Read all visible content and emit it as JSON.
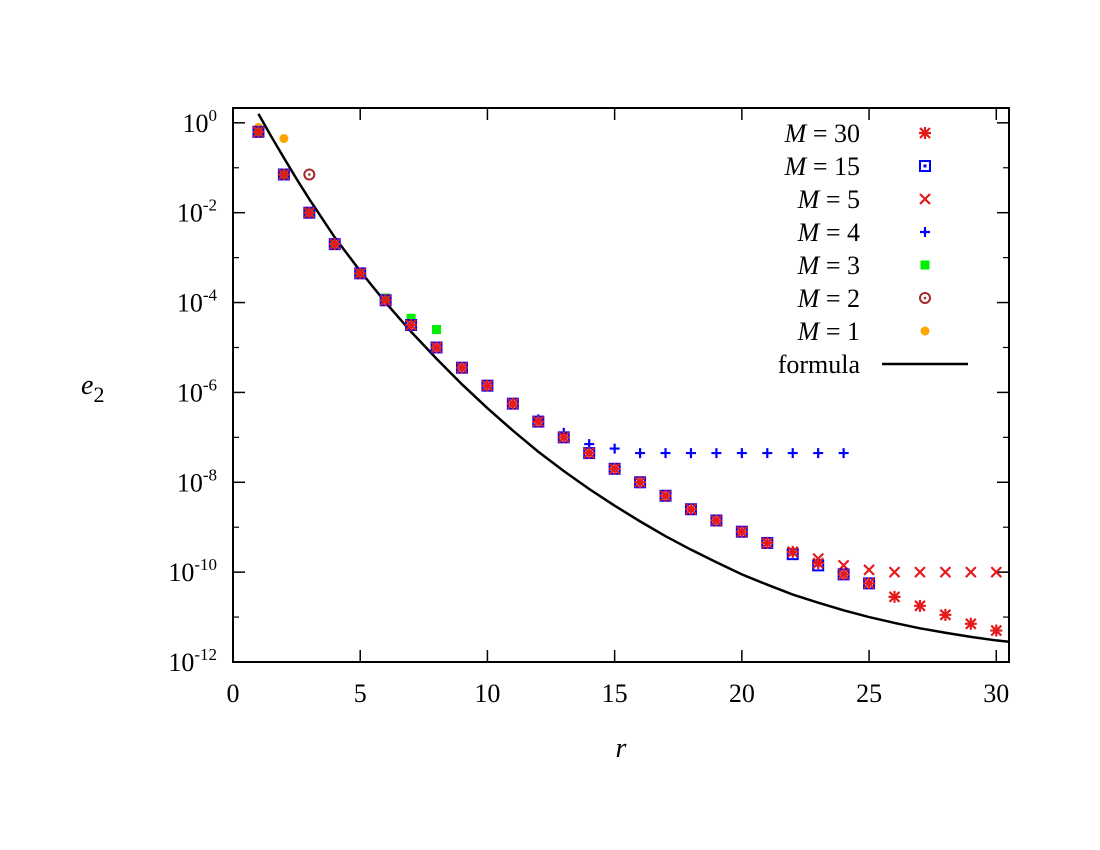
{
  "chart_data": {
    "type": "scatter",
    "title": "",
    "xlabel": "r",
    "ylabel": "e",
    "ylabel_sub": "2",
    "xlim": [
      0,
      30.5
    ],
    "ylim_exp": [
      -12,
      0.33
    ],
    "yscale": "log",
    "grid": false,
    "legend_position": "top-right",
    "x_ticks": [
      "0",
      "5",
      "10",
      "15",
      "20",
      "25",
      "30"
    ],
    "y_ticks": [
      {
        "base": "10",
        "exp": "0"
      },
      {
        "base": "10",
        "exp": "-2"
      },
      {
        "base": "10",
        "exp": "-4"
      },
      {
        "base": "10",
        "exp": "-6"
      },
      {
        "base": "10",
        "exp": "-8"
      },
      {
        "base": "10",
        "exp": "-10"
      },
      {
        "base": "10",
        "exp": "-12"
      }
    ],
    "series": [
      {
        "name": "M = 30",
        "marker": "star",
        "color": "#e41a1c",
        "x": [
          1,
          2,
          3,
          4,
          5,
          6,
          7,
          8,
          9,
          10,
          11,
          12,
          13,
          14,
          15,
          16,
          17,
          18,
          19,
          20,
          21,
          22,
          23,
          24,
          25,
          26,
          27,
          28,
          29,
          30
        ],
        "log10_y": [
          -0.2,
          -1.15,
          -2.0,
          -2.7,
          -3.35,
          -3.95,
          -4.5,
          -5.0,
          -5.45,
          -5.85,
          -6.25,
          -6.65,
          -7.0,
          -7.35,
          -7.7,
          -8.0,
          -8.3,
          -8.6,
          -8.85,
          -9.1,
          -9.35,
          -9.55,
          -9.8,
          -10.05,
          -10.25,
          -10.55,
          -10.75,
          -10.95,
          -11.15,
          -11.3
        ]
      },
      {
        "name": "M = 15",
        "marker": "open-square",
        "color": "#0000ff",
        "x": [
          1,
          2,
          3,
          4,
          5,
          6,
          7,
          8,
          9,
          10,
          11,
          12,
          13,
          14,
          15,
          16,
          17,
          18,
          19,
          20,
          21,
          22,
          23,
          24,
          25
        ],
        "log10_y": [
          -0.2,
          -1.15,
          -2.0,
          -2.7,
          -3.35,
          -3.95,
          -4.5,
          -5.0,
          -5.45,
          -5.85,
          -6.25,
          -6.65,
          -7.0,
          -7.35,
          -7.7,
          -8.0,
          -8.3,
          -8.6,
          -8.85,
          -9.1,
          -9.35,
          -9.6,
          -9.85,
          -10.05,
          -10.25
        ]
      },
      {
        "name": "M = 5",
        "marker": "x",
        "color": "#e41a1c",
        "x": [
          1,
          2,
          3,
          4,
          5,
          6,
          7,
          8,
          9,
          10,
          11,
          12,
          13,
          14,
          15,
          16,
          17,
          18,
          19,
          20,
          21,
          22,
          23,
          24,
          25,
          26,
          27,
          28,
          29,
          30
        ],
        "log10_y": [
          -0.2,
          -1.15,
          -2.0,
          -2.7,
          -3.35,
          -3.95,
          -4.5,
          -5.0,
          -5.45,
          -5.85,
          -6.25,
          -6.65,
          -7.0,
          -7.35,
          -7.7,
          -8.0,
          -8.3,
          -8.6,
          -8.85,
          -9.1,
          -9.35,
          -9.55,
          -9.7,
          -9.85,
          -9.95,
          -10.0,
          -10.0,
          -10.0,
          -10.0,
          -10.0
        ]
      },
      {
        "name": "M = 4",
        "marker": "plus",
        "color": "#0000ff",
        "x": [
          1,
          2,
          3,
          4,
          5,
          6,
          7,
          8,
          9,
          10,
          11,
          12,
          13,
          14,
          15,
          16,
          17,
          18,
          19,
          20,
          21,
          22,
          23,
          24
        ],
        "log10_y": [
          -0.2,
          -1.15,
          -2.0,
          -2.7,
          -3.35,
          -3.95,
          -4.5,
          -5.0,
          -5.45,
          -5.85,
          -6.25,
          -6.6,
          -6.9,
          -7.15,
          -7.25,
          -7.35,
          -7.35,
          -7.35,
          -7.35,
          -7.35,
          -7.35,
          -7.35,
          -7.35,
          -7.35
        ]
      },
      {
        "name": "M = 3",
        "marker": "filled-square",
        "color": "#00ee00",
        "x": [
          1,
          2,
          3,
          4,
          5,
          6,
          7,
          8
        ],
        "log10_y": [
          -0.2,
          -1.15,
          -2.0,
          -2.7,
          -3.35,
          -3.9,
          -4.35,
          -4.6
        ]
      },
      {
        "name": "M = 2",
        "marker": "open-circle",
        "color": "#a52a2a",
        "x": [
          1,
          2,
          3
        ],
        "log10_y": [
          -0.2,
          -1.15,
          -1.15
        ]
      },
      {
        "name": "M = 1",
        "marker": "filled-circle",
        "color": "#ffa500",
        "x": [
          1,
          2
        ],
        "log10_y": [
          -0.1,
          -0.35
        ]
      },
      {
        "name": "formula",
        "marker": "line",
        "color": "#000000",
        "x": [
          1.0,
          1.5,
          2,
          2.5,
          3,
          4,
          5,
          6,
          7,
          8,
          9,
          10,
          11,
          12,
          13,
          14,
          15,
          16,
          17,
          18,
          19,
          20,
          21,
          22,
          23,
          24,
          25,
          26,
          27,
          28,
          29,
          30,
          30.5
        ],
        "log10_y": [
          0.2,
          -0.3,
          -0.78,
          -1.25,
          -1.7,
          -2.55,
          -3.3,
          -4.0,
          -4.65,
          -5.25,
          -5.82,
          -6.35,
          -6.85,
          -7.32,
          -7.75,
          -8.15,
          -8.52,
          -8.87,
          -9.2,
          -9.5,
          -9.78,
          -10.05,
          -10.28,
          -10.5,
          -10.68,
          -10.85,
          -11.0,
          -11.13,
          -11.25,
          -11.35,
          -11.44,
          -11.52,
          -11.55
        ]
      }
    ]
  }
}
